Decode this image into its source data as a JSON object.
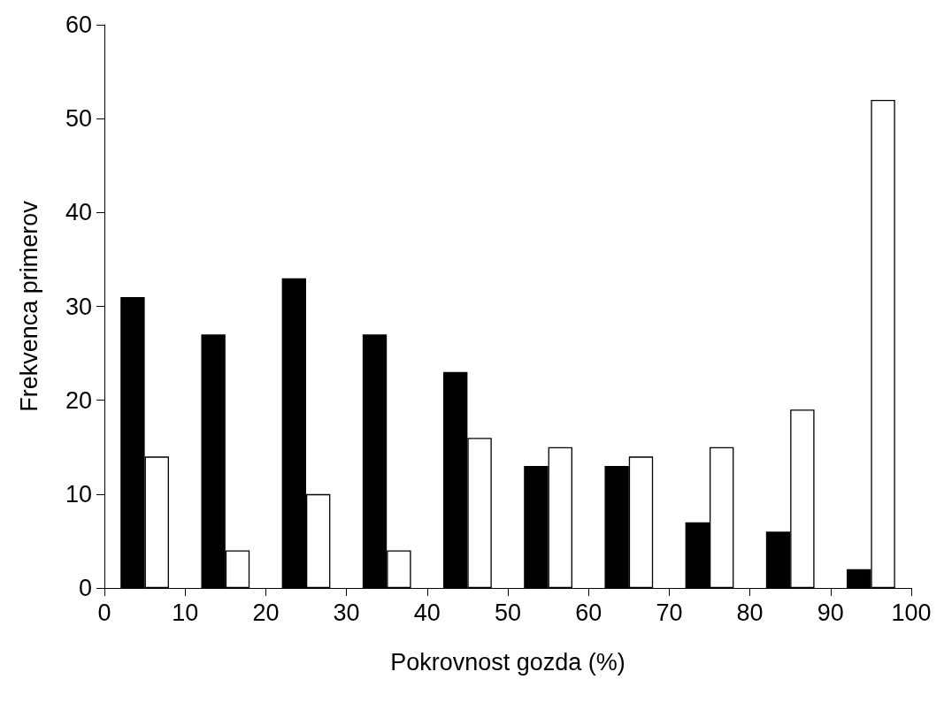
{
  "chart_data": {
    "type": "bar",
    "xlabel": "Pokrovnost gozda (%)",
    "ylabel": "Frekvenca primerov",
    "x": [
      5,
      15,
      25,
      35,
      45,
      55,
      65,
      75,
      85,
      95
    ],
    "series": [
      {
        "color": "#000000",
        "values": [
          31,
          27,
          33,
          27,
          23,
          13,
          13,
          7,
          6,
          2
        ]
      },
      {
        "color": "#ffffff",
        "values": [
          14,
          4,
          10,
          4,
          16,
          15,
          14,
          15,
          19,
          52
        ]
      }
    ],
    "xlim": [
      0,
      100
    ],
    "xticks": [
      0,
      10,
      20,
      30,
      40,
      50,
      60,
      70,
      80,
      90,
      100
    ],
    "ylim": [
      0,
      60
    ],
    "yticks": [
      0,
      10,
      20,
      30,
      40,
      50,
      60
    ],
    "grid": false
  }
}
